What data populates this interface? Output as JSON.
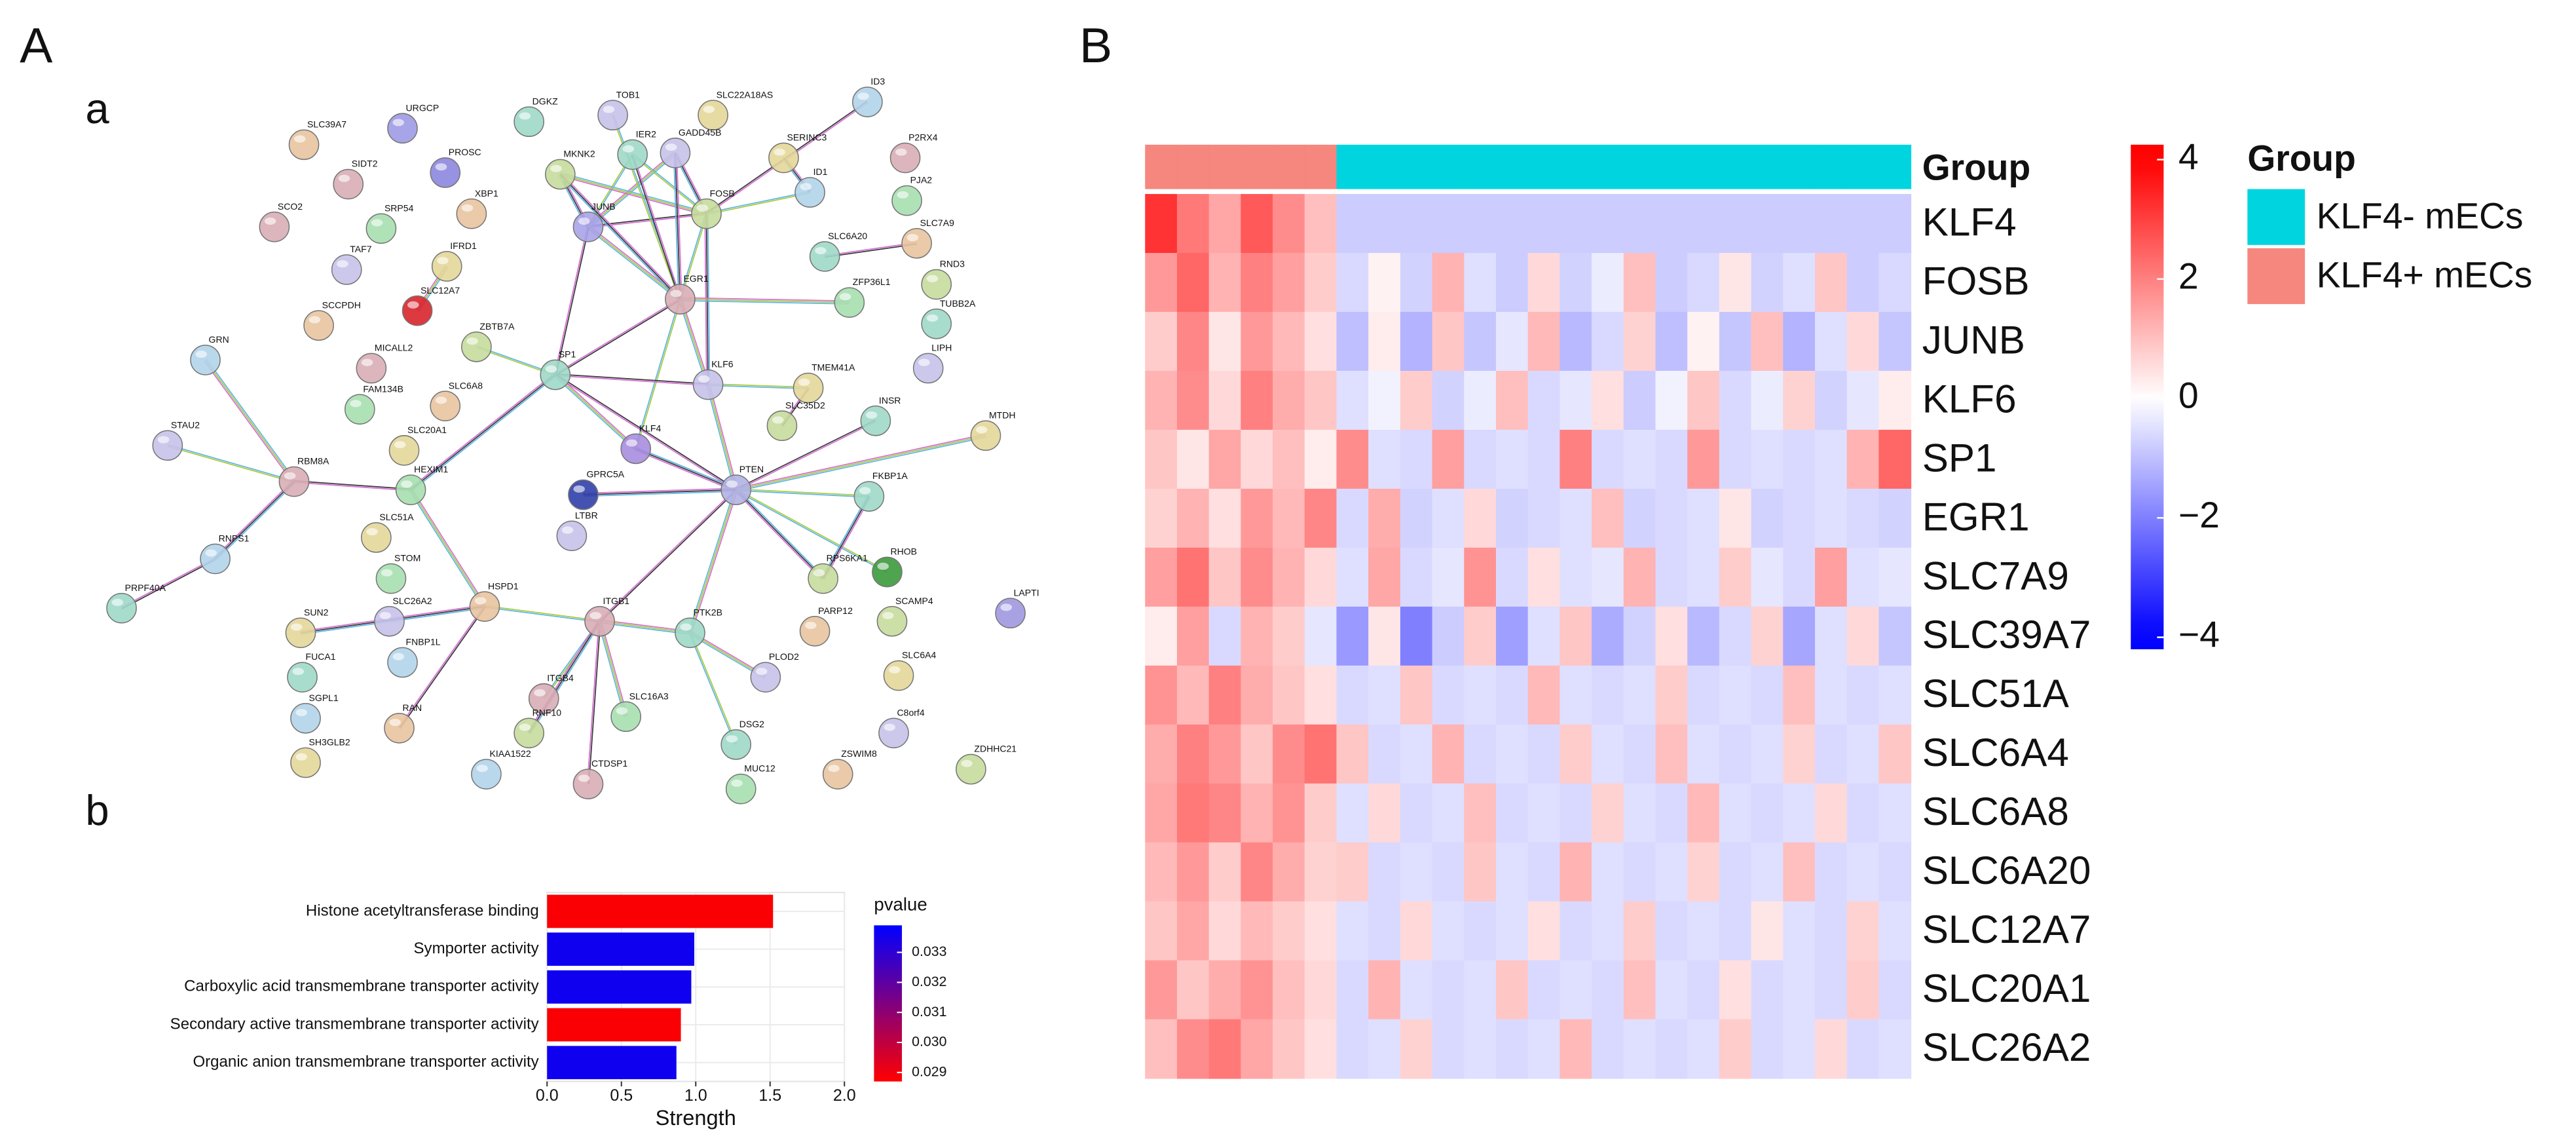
{
  "panels": [
    "A",
    "a",
    "b",
    "B"
  ],
  "network": {
    "nodes": [
      "SLC39A7",
      "URGCP",
      "DGKZ",
      "TOB1",
      "SLC22A18AS",
      "ID3",
      "P2RX4",
      "PJA2",
      "SLC7A9",
      "RND3",
      "TUBB2A",
      "LIPH",
      "MTDH",
      "LAPTI",
      "SIDT2",
      "PROSC",
      "XBP1",
      "MKNK2",
      "IER2",
      "GADD45B",
      "SERINC3",
      "ID1",
      "SCO2",
      "SRP54",
      "JUNB",
      "FOSB",
      "SLC6A20",
      "TAF7",
      "IFRD1",
      "SLC12A7",
      "EGR1",
      "ZFP36L1",
      "SCCPDH",
      "ZBTB7A",
      "SP1",
      "KLF6",
      "TMEM41A",
      "GRN",
      "MICALL2",
      "FAM134B",
      "SLC6A8",
      "SLC35D2",
      "INSR",
      "STAU2",
      "SLC20A1",
      "KLF4",
      "RBM8A",
      "HEXIM1",
      "GPRC5A",
      "PTEN",
      "FKBP1A",
      "LTBR",
      "SLC51A",
      "RNPS1",
      "RHOB",
      "STOM",
      "HSPD1",
      "RPS6KA1",
      "PRPF40A",
      "SLC26A2",
      "SUN2",
      "FNBP1L",
      "ITGB1",
      "PTK2B",
      "PARP12",
      "SCAMP4",
      "FUCA1",
      "PLOD2",
      "SLC6A4",
      "SGPL1",
      "ITGB4",
      "SLC16A3",
      "RAN",
      "RNF10",
      "DSG2",
      "C8orf4",
      "SH3GLB2",
      "KIAA1522",
      "CTDSP1",
      "MUC12",
      "ZSWIM8",
      "ZDHHC21"
    ]
  },
  "chart_data": [
    {
      "type": "bar",
      "orientation": "horizontal",
      "categories": [
        "Histone acetyltransferase binding",
        "Symporter activity",
        "Carboxylic acid transmembrane transporter activity",
        "Secondary active transmembrane transporter activity",
        "Organic anion transmembrane transporter activity"
      ],
      "values": [
        1.52,
        0.99,
        0.97,
        0.9,
        0.87
      ],
      "pvalues": [
        0.0288,
        0.0336,
        0.0336,
        0.0288,
        0.0336
      ],
      "xlabel": "Strength",
      "xlim": [
        0,
        2
      ],
      "xticks": [
        {
          "value": 0,
          "label": "0.0"
        },
        {
          "value": 0.5,
          "label": "0.5"
        },
        {
          "value": 1,
          "label": "1.0"
        },
        {
          "value": 1.5,
          "label": "1.5"
        },
        {
          "value": 2,
          "label": "2.0"
        }
      ],
      "grid": true,
      "colorbar": {
        "title": "pvalue",
        "lim": [
          0.0287,
          0.0339
        ],
        "ticks": [
          0.029,
          {
            "value": 0.03,
            "label": "0.030"
          },
          0.031,
          0.032,
          0.033
        ],
        "low_color": "#ff0000",
        "high_color": "#0000ff"
      }
    },
    {
      "type": "heatmap",
      "group_row_label": "Group",
      "legend_title": "Group",
      "groups": [
        {
          "name": "KLF4- mECs",
          "color": "#00d5df"
        },
        {
          "name": "KLF4+ mECs",
          "color": "#f5877f"
        }
      ],
      "column_groups": [
        1,
        1,
        1,
        1,
        1,
        1,
        0,
        0,
        0,
        0,
        0,
        0,
        0,
        0,
        0,
        0,
        0,
        0,
        0,
        0,
        0,
        0,
        0,
        0
      ],
      "series": [
        {
          "name": "KLF4",
          "values": [
            3.2,
            2.1,
            1.4,
            2.6,
            1.8,
            1.0,
            -0.8,
            -0.8,
            -0.8,
            -0.8,
            -0.8,
            -0.8,
            -0.8,
            -0.8,
            -0.8,
            -0.8,
            -0.8,
            -0.8,
            -0.8,
            -0.8,
            -0.8,
            -0.8,
            -0.8,
            -0.8
          ]
        },
        {
          "name": "FOSB",
          "values": [
            1.6,
            2.4,
            1.2,
            2.0,
            1.5,
            0.8,
            -0.6,
            0.2,
            -0.7,
            1.2,
            -0.5,
            -0.8,
            0.6,
            -0.7,
            -0.3,
            1.0,
            -0.8,
            -0.6,
            0.4,
            -0.7,
            -0.5,
            0.9,
            -0.8,
            -0.6
          ]
        },
        {
          "name": "JUNB",
          "values": [
            0.8,
            1.9,
            0.4,
            1.6,
            1.1,
            0.5,
            -1.0,
            0.3,
            -1.2,
            0.9,
            -0.9,
            -0.4,
            1.1,
            -1.1,
            -0.6,
            0.7,
            -1.0,
            0.2,
            -0.9,
            1.0,
            -1.2,
            -0.5,
            0.6,
            -0.9
          ]
        },
        {
          "name": "KLF6",
          "values": [
            1.2,
            1.8,
            0.6,
            2.0,
            1.3,
            0.9,
            -0.5,
            -0.2,
            0.8,
            -0.7,
            -0.3,
            1.0,
            -0.6,
            -0.4,
            0.5,
            -0.8,
            -0.2,
            0.9,
            -0.6,
            -0.3,
            0.7,
            -0.7,
            -0.4,
            0.3
          ]
        },
        {
          "name": "SP1",
          "values": [
            0.9,
            0.4,
            1.4,
            0.6,
            1.0,
            0.3,
            1.8,
            -0.5,
            -0.6,
            1.5,
            -0.6,
            -0.5,
            -0.6,
            2.0,
            -0.6,
            -0.5,
            -0.6,
            1.6,
            -0.6,
            -0.5,
            -0.6,
            -0.5,
            1.2,
            2.4
          ]
        },
        {
          "name": "EGR1",
          "values": [
            0.7,
            1.2,
            0.5,
            1.6,
            1.1,
            1.9,
            -0.6,
            1.3,
            -0.7,
            -0.5,
            0.6,
            -0.7,
            -0.6,
            -0.5,
            1.0,
            -0.7,
            -0.6,
            -0.5,
            0.4,
            -0.7,
            -0.6,
            -0.5,
            -0.6,
            -0.7
          ]
        },
        {
          "name": "SLC7A9",
          "values": [
            1.5,
            2.2,
            0.9,
            1.8,
            1.2,
            0.6,
            -0.5,
            1.4,
            -0.6,
            -0.4,
            1.7,
            -0.6,
            0.5,
            -0.5,
            -0.4,
            1.2,
            -0.6,
            -0.5,
            0.8,
            -0.4,
            -0.6,
            1.5,
            -0.5,
            -0.4
          ]
        },
        {
          "name": "SLC39A7",
          "values": [
            0.3,
            1.5,
            -0.6,
            1.2,
            0.8,
            -0.4,
            -1.6,
            0.4,
            -2.0,
            -0.8,
            0.8,
            -1.5,
            -0.5,
            0.9,
            -1.3,
            -0.7,
            0.5,
            -1.1,
            -0.6,
            0.7,
            -1.4,
            -0.5,
            0.6,
            -0.9
          ]
        },
        {
          "name": "SLC51A",
          "values": [
            1.7,
            1.1,
            2.0,
            1.3,
            0.9,
            0.5,
            -0.6,
            -0.5,
            0.9,
            -0.6,
            -0.5,
            -0.6,
            1.1,
            -0.5,
            -0.6,
            -0.5,
            0.8,
            -0.6,
            -0.5,
            -0.6,
            1.0,
            -0.5,
            -0.6,
            -0.5
          ]
        },
        {
          "name": "SLC6A4",
          "values": [
            1.3,
            2.0,
            1.6,
            0.9,
            1.8,
            2.2,
            0.9,
            -0.6,
            -0.5,
            1.2,
            -0.6,
            -0.5,
            -0.6,
            0.8,
            -0.5,
            -0.6,
            1.0,
            -0.5,
            -0.6,
            -0.5,
            0.7,
            -0.6,
            -0.5,
            0.9
          ]
        },
        {
          "name": "SLC6A8",
          "values": [
            1.4,
            2.1,
            1.9,
            1.2,
            1.7,
            0.8,
            -0.5,
            0.6,
            -0.6,
            -0.5,
            1.0,
            -0.6,
            -0.5,
            -0.6,
            0.7,
            -0.5,
            -0.6,
            1.1,
            -0.5,
            -0.6,
            -0.5,
            0.6,
            -0.6,
            -0.5
          ]
        },
        {
          "name": "SLC6A20",
          "values": [
            1.1,
            1.6,
            0.8,
            1.9,
            1.3,
            0.7,
            0.8,
            -0.6,
            -0.5,
            -0.6,
            0.9,
            -0.5,
            -0.6,
            1.2,
            -0.5,
            -0.6,
            -0.5,
            0.7,
            -0.6,
            -0.5,
            1.0,
            -0.6,
            -0.5,
            -0.6
          ]
        },
        {
          "name": "SLC12A7",
          "values": [
            0.9,
            1.4,
            0.6,
            1.1,
            0.8,
            0.5,
            -0.5,
            -0.6,
            0.6,
            -0.5,
            -0.6,
            -0.5,
            0.5,
            -0.6,
            -0.5,
            0.8,
            -0.6,
            -0.5,
            -0.6,
            0.4,
            -0.5,
            -0.6,
            0.7,
            -0.5
          ]
        },
        {
          "name": "SLC20A1",
          "values": [
            1.6,
            0.9,
            1.3,
            1.7,
            1.0,
            0.6,
            -0.6,
            1.2,
            -0.5,
            -0.6,
            -0.5,
            0.9,
            -0.6,
            -0.5,
            -0.6,
            1.0,
            -0.5,
            -0.6,
            0.5,
            -0.6,
            -0.5,
            -0.6,
            0.8,
            -0.6
          ]
        },
        {
          "name": "SLC26A2",
          "values": [
            1.0,
            1.8,
            2.1,
            1.4,
            0.9,
            0.5,
            -0.6,
            -0.5,
            0.7,
            -0.6,
            -0.5,
            -0.6,
            -0.5,
            1.1,
            -0.6,
            -0.5,
            -0.6,
            -0.5,
            0.8,
            -0.6,
            -0.5,
            0.6,
            -0.6,
            -0.5
          ]
        }
      ],
      "zlim": [
        -4.2,
        4.25
      ],
      "zticks": [
        {
          "value": -4,
          "label": "−4"
        },
        {
          "value": -2,
          "label": "−2"
        },
        0,
        2,
        4
      ],
      "low_color": "#0000ff",
      "mid_color": "#ffffff",
      "high_color": "#ff0000"
    }
  ]
}
